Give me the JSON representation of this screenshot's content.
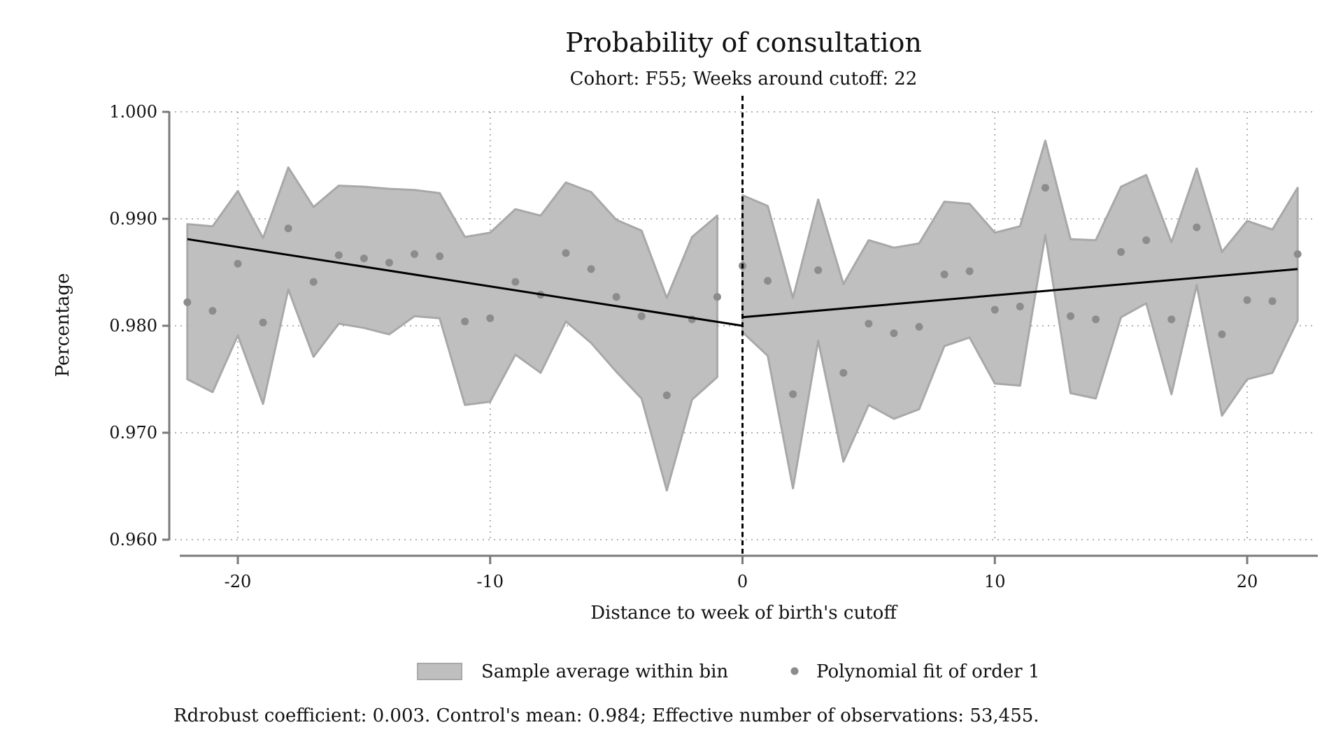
{
  "chart_data": {
    "type": "scatter",
    "title": "Probability of consultation",
    "subtitle": "Cohort: F55; Weeks around cutoff: 22",
    "xlabel": "Distance to week of birth's cutoff",
    "ylabel": "Percentage",
    "xlim": [
      -22.3,
      22.8
    ],
    "ylim": [
      0.96,
      1.0
    ],
    "xticks": [
      -20,
      -10,
      0,
      10,
      20
    ],
    "xtick_labels": [
      "-20",
      "-10",
      "0",
      "10",
      "20"
    ],
    "yticks": [
      0.96,
      0.97,
      0.98,
      0.99,
      1.0
    ],
    "ytick_labels": [
      "0.960",
      "0.970",
      "0.980",
      "0.990",
      "1.000"
    ],
    "grid": true,
    "cutoff_x": 0,
    "legend_position": "bottom",
    "legend": {
      "band": "Sample average within bin",
      "points": "Polynomial fit of order 1"
    },
    "note": "Rdrobust coefficient: 0.003. Control's mean: 0.984; Effective number of observations: 53,455.",
    "colors": {
      "band_fill": "#bfbfbf",
      "band_edge": "#a8a8a8",
      "points": "#8c8c8c",
      "fit_line": "#000000",
      "axis": "#7a7a7a",
      "grid": "#9a9a9a"
    },
    "series": [
      {
        "side": "left",
        "x": [
          -22,
          -21,
          -20,
          -19,
          -18,
          -17,
          -16,
          -15,
          -14,
          -13,
          -12,
          -11,
          -10,
          -9,
          -8,
          -7,
          -6,
          -5,
          -4,
          -3,
          -2,
          -1
        ],
        "points": [
          0.9822,
          0.9814,
          0.9858,
          0.9803,
          0.9891,
          0.9841,
          0.9866,
          0.9863,
          0.9859,
          0.9867,
          0.9865,
          0.9804,
          0.9807,
          0.9841,
          0.9829,
          0.9868,
          0.9853,
          0.9827,
          0.9809,
          0.9735,
          0.9806,
          0.9827
        ],
        "upper": [
          0.9895,
          0.9893,
          0.9926,
          0.9882,
          0.9948,
          0.9911,
          0.9931,
          0.993,
          0.9928,
          0.9927,
          0.9924,
          0.9883,
          0.9887,
          0.9909,
          0.9903,
          0.9934,
          0.9925,
          0.9899,
          0.9889,
          0.9826,
          0.9883,
          0.9903
        ],
        "lower": [
          0.975,
          0.9738,
          0.9791,
          0.9727,
          0.9834,
          0.9771,
          0.9802,
          0.9798,
          0.9792,
          0.9809,
          0.9807,
          0.9726,
          0.9729,
          0.9773,
          0.9756,
          0.9804,
          0.9784,
          0.9757,
          0.9732,
          0.9646,
          0.9731,
          0.9752
        ],
        "fit": {
          "x": [
            -22,
            0
          ],
          "y": [
            0.9881,
            0.98
          ]
        }
      },
      {
        "side": "right",
        "x": [
          0,
          1,
          2,
          3,
          4,
          5,
          6,
          7,
          8,
          9,
          10,
          11,
          12,
          13,
          14,
          15,
          16,
          17,
          18,
          19,
          20,
          21,
          22
        ],
        "points": [
          0.9856,
          0.9842,
          0.9736,
          0.9852,
          0.9756,
          0.9802,
          0.9793,
          0.9799,
          0.9848,
          0.9851,
          0.9815,
          0.9818,
          0.9929,
          0.9809,
          0.9806,
          0.9869,
          0.988,
          0.9806,
          0.9892,
          0.9792,
          0.9824,
          0.9823,
          0.9867
        ],
        "upper": [
          0.9922,
          0.9912,
          0.9826,
          0.9918,
          0.9839,
          0.988,
          0.9873,
          0.9877,
          0.9916,
          0.9914,
          0.9887,
          0.9893,
          0.9973,
          0.9881,
          0.988,
          0.993,
          0.9941,
          0.9878,
          0.9947,
          0.9869,
          0.9898,
          0.989,
          0.9929
        ],
        "lower": [
          0.9794,
          0.9772,
          0.9648,
          0.9786,
          0.9673,
          0.9726,
          0.9713,
          0.9722,
          0.9781,
          0.9789,
          0.9746,
          0.9744,
          0.9885,
          0.9737,
          0.9732,
          0.9808,
          0.9821,
          0.9736,
          0.9838,
          0.9716,
          0.975,
          0.9756,
          0.9805
        ],
        "fit": {
          "x": [
            0,
            22
          ],
          "y": [
            0.9808,
            0.9853
          ]
        }
      }
    ]
  }
}
